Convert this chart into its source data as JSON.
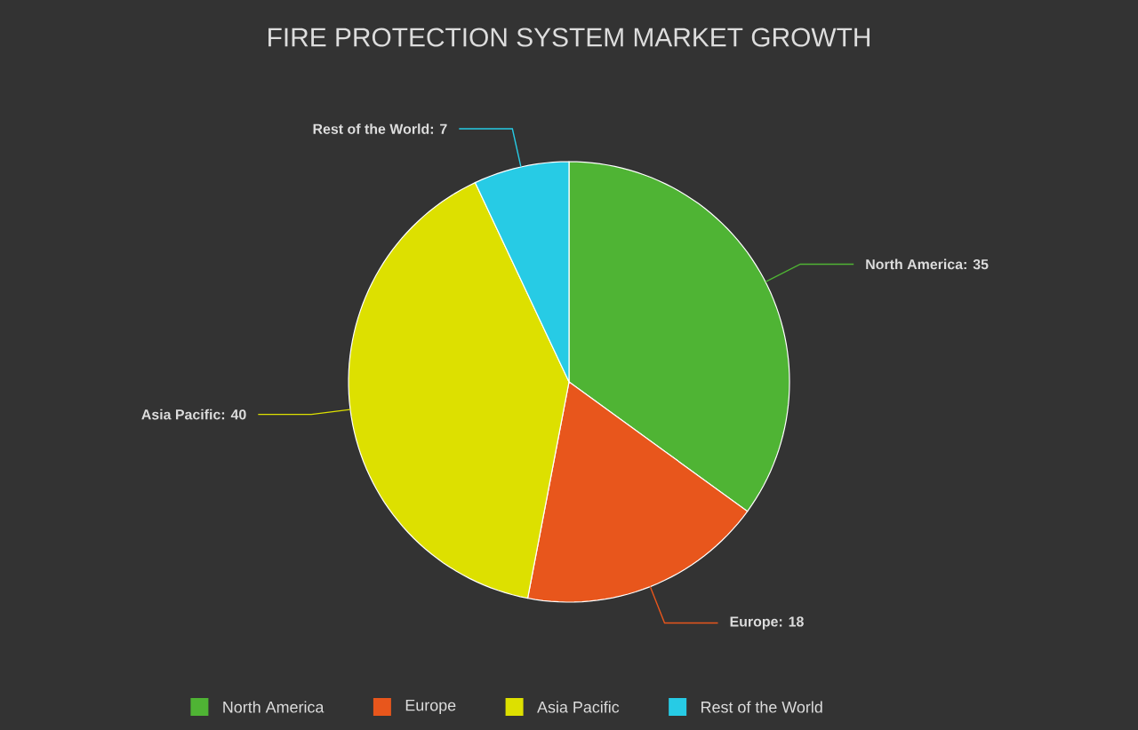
{
  "chart_data": {
    "type": "pie",
    "title": "FIRE PROTECTION SYSTEM MARKET GROWTH",
    "categories": [
      "North America",
      "Europe",
      "Asia Pacific",
      "Rest of the World"
    ],
    "values": [
      35,
      18,
      40,
      7
    ],
    "value_labels": [
      "North America: 35",
      "Europe: 18",
      "Asia Pacific: 40",
      "Rest of the World: 7"
    ],
    "colors": [
      "#4fb434",
      "#e8561c",
      "#dde000",
      "#27cbe5"
    ],
    "legend": "bottom"
  }
}
